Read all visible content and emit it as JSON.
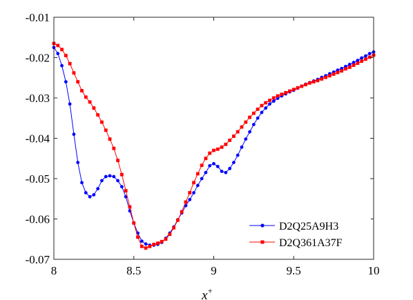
{
  "chart_data": {
    "type": "line",
    "xlabel": "x",
    "xlabel_superscript": "+",
    "ylabel": "",
    "xlim": [
      8,
      10
    ],
    "ylim": [
      -0.07,
      -0.01
    ],
    "xticks": [
      "8",
      "8.5",
      "9",
      "9.5",
      "10"
    ],
    "yticks": [
      "-0.01",
      "-0.02",
      "-0.03",
      "-0.04",
      "-0.05",
      "-0.06",
      "-0.07"
    ],
    "grid": false,
    "legend_position": "bottom-right",
    "series": [
      {
        "name": "D2Q25A9H3",
        "color": "#0000ff",
        "marker": "circle",
        "points": [
          [
            8.0,
            -0.0175
          ],
          [
            8.025,
            -0.019
          ],
          [
            8.05,
            -0.022
          ],
          [
            8.075,
            -0.026
          ],
          [
            8.1,
            -0.0315
          ],
          [
            8.125,
            -0.039
          ],
          [
            8.15,
            -0.046
          ],
          [
            8.175,
            -0.051
          ],
          [
            8.2,
            -0.0535
          ],
          [
            8.225,
            -0.0545
          ],
          [
            8.25,
            -0.054
          ],
          [
            8.275,
            -0.0525
          ],
          [
            8.3,
            -0.0505
          ],
          [
            8.325,
            -0.0495
          ],
          [
            8.35,
            -0.0493
          ],
          [
            8.375,
            -0.0495
          ],
          [
            8.4,
            -0.0505
          ],
          [
            8.425,
            -0.052
          ],
          [
            8.45,
            -0.0545
          ],
          [
            8.475,
            -0.058
          ],
          [
            8.5,
            -0.061
          ],
          [
            8.525,
            -0.0635
          ],
          [
            8.55,
            -0.0655
          ],
          [
            8.575,
            -0.0662
          ],
          [
            8.6,
            -0.0665
          ],
          [
            8.625,
            -0.0665
          ],
          [
            8.65,
            -0.0663
          ],
          [
            8.675,
            -0.0658
          ],
          [
            8.7,
            -0.0648
          ],
          [
            8.725,
            -0.0635
          ],
          [
            8.75,
            -0.062
          ],
          [
            8.775,
            -0.0602
          ],
          [
            8.8,
            -0.0585
          ],
          [
            8.825,
            -0.0567
          ],
          [
            8.85,
            -0.0552
          ],
          [
            8.875,
            -0.0535
          ],
          [
            8.9,
            -0.0517
          ],
          [
            8.925,
            -0.05
          ],
          [
            8.95,
            -0.0485
          ],
          [
            8.975,
            -0.0468
          ],
          [
            9.0,
            -0.0463
          ],
          [
            9.025,
            -0.047
          ],
          [
            9.05,
            -0.0482
          ],
          [
            9.075,
            -0.0485
          ],
          [
            9.1,
            -0.0475
          ],
          [
            9.125,
            -0.046
          ],
          [
            9.15,
            -0.0442
          ],
          [
            9.175,
            -0.0422
          ],
          [
            9.2,
            -0.0402
          ],
          [
            9.225,
            -0.0384
          ],
          [
            9.25,
            -0.0366
          ],
          [
            9.275,
            -0.035
          ],
          [
            9.3,
            -0.0336
          ],
          [
            9.325,
            -0.0325
          ],
          [
            9.35,
            -0.0315
          ],
          [
            9.375,
            -0.0308
          ],
          [
            9.4,
            -0.0301
          ],
          [
            9.425,
            -0.0295
          ],
          [
            9.45,
            -0.029
          ],
          [
            9.475,
            -0.0285
          ],
          [
            9.5,
            -0.0281
          ],
          [
            9.525,
            -0.0276
          ],
          [
            9.55,
            -0.0271
          ],
          [
            9.575,
            -0.0266
          ],
          [
            9.6,
            -0.0262
          ],
          [
            9.625,
            -0.0258
          ],
          [
            9.65,
            -0.0254
          ],
          [
            9.675,
            -0.0249
          ],
          [
            9.7,
            -0.0245
          ],
          [
            9.725,
            -0.024
          ],
          [
            9.75,
            -0.0236
          ],
          [
            9.775,
            -0.0231
          ],
          [
            9.8,
            -0.0227
          ],
          [
            9.825,
            -0.0222
          ],
          [
            9.85,
            -0.0217
          ],
          [
            9.875,
            -0.0212
          ],
          [
            9.9,
            -0.0207
          ],
          [
            9.925,
            -0.0201
          ],
          [
            9.95,
            -0.0196
          ],
          [
            9.975,
            -0.019
          ],
          [
            10.0,
            -0.0186
          ]
        ]
      },
      {
        "name": "D2Q361A37F",
        "color": "#ff0000",
        "marker": "square",
        "points": [
          [
            8.0,
            -0.0165
          ],
          [
            8.025,
            -0.017
          ],
          [
            8.05,
            -0.018
          ],
          [
            8.075,
            -0.0195
          ],
          [
            8.1,
            -0.0215
          ],
          [
            8.125,
            -0.0238
          ],
          [
            8.15,
            -0.026
          ],
          [
            8.175,
            -0.0282
          ],
          [
            8.2,
            -0.0298
          ],
          [
            8.225,
            -0.031
          ],
          [
            8.25,
            -0.0325
          ],
          [
            8.275,
            -0.0342
          ],
          [
            8.3,
            -0.036
          ],
          [
            8.325,
            -0.038
          ],
          [
            8.35,
            -0.0402
          ],
          [
            8.375,
            -0.0425
          ],
          [
            8.4,
            -0.0455
          ],
          [
            8.425,
            -0.049
          ],
          [
            8.45,
            -0.053
          ],
          [
            8.475,
            -0.057
          ],
          [
            8.5,
            -0.061
          ],
          [
            8.525,
            -0.0645
          ],
          [
            8.55,
            -0.0668
          ],
          [
            8.575,
            -0.0672
          ],
          [
            8.6,
            -0.0668
          ],
          [
            8.625,
            -0.0663
          ],
          [
            8.65,
            -0.066
          ],
          [
            8.675,
            -0.0656
          ],
          [
            8.7,
            -0.065
          ],
          [
            8.725,
            -0.0638
          ],
          [
            8.75,
            -0.0622
          ],
          [
            8.775,
            -0.0603
          ],
          [
            8.8,
            -0.0582
          ],
          [
            8.825,
            -0.0558
          ],
          [
            8.85,
            -0.0535
          ],
          [
            8.875,
            -0.051
          ],
          [
            8.9,
            -0.0488
          ],
          [
            8.925,
            -0.0467
          ],
          [
            8.95,
            -0.045
          ],
          [
            8.975,
            -0.0437
          ],
          [
            9.0,
            -0.043
          ],
          [
            9.025,
            -0.0427
          ],
          [
            9.05,
            -0.0422
          ],
          [
            9.075,
            -0.0415
          ],
          [
            9.1,
            -0.0405
          ],
          [
            9.125,
            -0.0395
          ],
          [
            9.15,
            -0.0384
          ],
          [
            9.175,
            -0.0372
          ],
          [
            9.2,
            -0.036
          ],
          [
            9.225,
            -0.0348
          ],
          [
            9.25,
            -0.0338
          ],
          [
            9.275,
            -0.0328
          ],
          [
            9.3,
            -0.0319
          ],
          [
            9.325,
            -0.0312
          ],
          [
            9.35,
            -0.0306
          ],
          [
            9.375,
            -0.03
          ],
          [
            9.4,
            -0.0295
          ],
          [
            9.425,
            -0.0291
          ],
          [
            9.45,
            -0.0287
          ],
          [
            9.475,
            -0.0283
          ],
          [
            9.5,
            -0.0279
          ],
          [
            9.525,
            -0.0275
          ],
          [
            9.55,
            -0.0271
          ],
          [
            9.575,
            -0.0267
          ],
          [
            9.6,
            -0.0263
          ],
          [
            9.625,
            -0.026
          ],
          [
            9.65,
            -0.0257
          ],
          [
            9.675,
            -0.0253
          ],
          [
            9.7,
            -0.0249
          ],
          [
            9.725,
            -0.0245
          ],
          [
            9.75,
            -0.0241
          ],
          [
            9.775,
            -0.0237
          ],
          [
            9.8,
            -0.0233
          ],
          [
            9.825,
            -0.0228
          ],
          [
            9.85,
            -0.0224
          ],
          [
            9.875,
            -0.0219
          ],
          [
            9.9,
            -0.0214
          ],
          [
            9.925,
            -0.0209
          ],
          [
            9.95,
            -0.0204
          ],
          [
            9.975,
            -0.0199
          ],
          [
            10.0,
            -0.0194
          ]
        ]
      }
    ]
  }
}
